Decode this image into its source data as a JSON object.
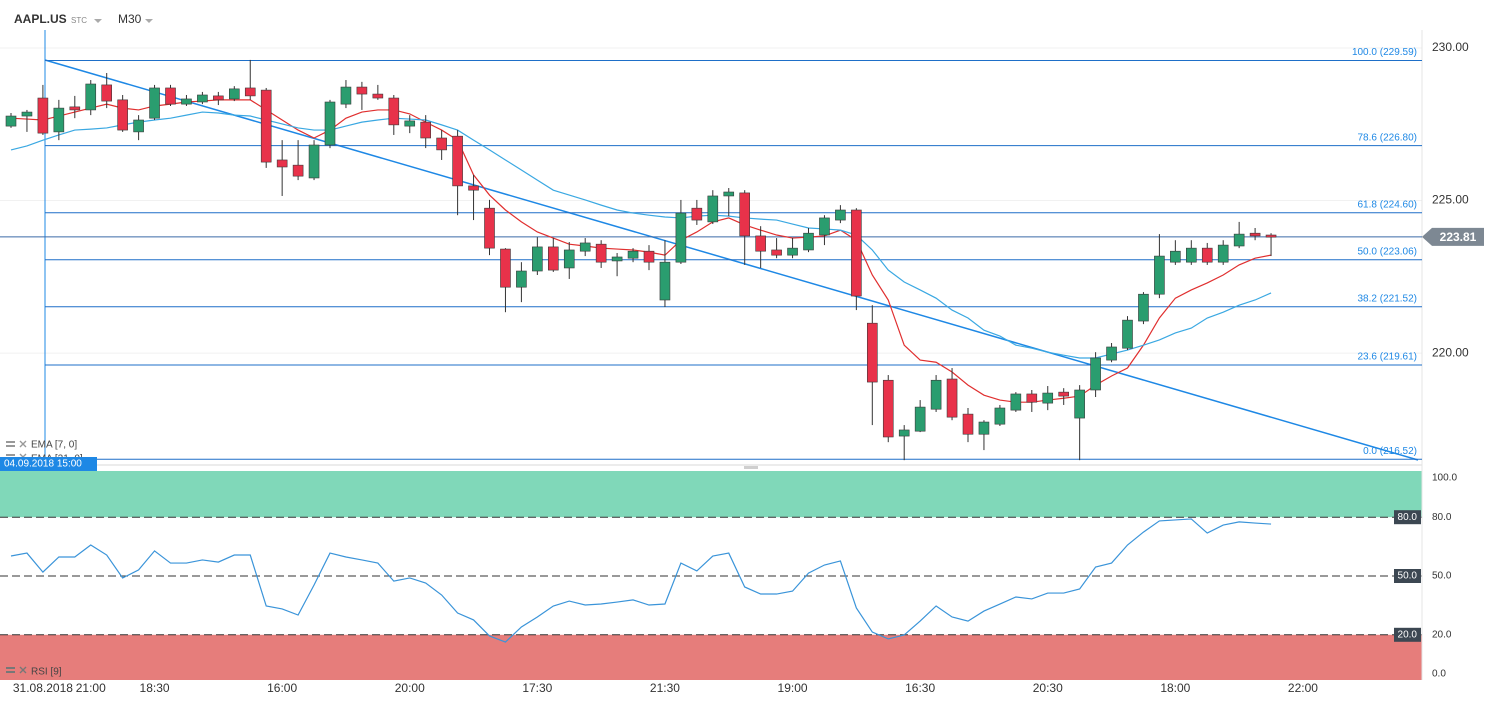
{
  "header": {
    "symbol": "AAPL.US",
    "exchange": "STC",
    "interval": "M30"
  },
  "chart_data": [
    {
      "type": "candlestick",
      "crosshair_label": "04.09.2018 15:00",
      "categories": [
        null,
        null,
        "31.08.2018",
        null,
        null,
        "21:00",
        null,
        null,
        null,
        "18:30",
        null,
        null,
        null,
        null,
        null,
        null,
        null,
        "16:00",
        null,
        null,
        null,
        null,
        null,
        null,
        null,
        "20:00",
        null,
        null,
        null,
        null,
        null,
        null,
        null,
        "17:30",
        null,
        null,
        null,
        null,
        null,
        null,
        null,
        "21:30",
        null,
        null,
        null,
        null,
        null,
        null,
        null,
        "19:00",
        null,
        null,
        null,
        null,
        null,
        null,
        null,
        "16:30",
        null,
        null,
        null,
        null,
        null,
        null,
        null,
        "20:30",
        null,
        null,
        null,
        null,
        null,
        null,
        null,
        "18:00",
        null,
        null,
        null,
        null,
        null,
        null,
        null,
        "22:00"
      ],
      "open": [
        227.44,
        227.77,
        228.36,
        227.25,
        228.07,
        227.97,
        228.79,
        228.3,
        227.25,
        227.7,
        228.69,
        228.16,
        228.23,
        228.43,
        228.33,
        228.69,
        228.62,
        226.33,
        226.16,
        225.74,
        226.82,
        228.16,
        228.72,
        228.49,
        228.36,
        227.44,
        227.57,
        227.05,
        227.11,
        225.48,
        224.75,
        223.41,
        222.16,
        222.69,
        223.48,
        222.79,
        223.34,
        223.57,
        223.02,
        223.11,
        223.34,
        221.74,
        222.98,
        224.75,
        224.3,
        225.15,
        225.25,
        223.84,
        223.38,
        223.21,
        223.38,
        223.87,
        224.36,
        224.69,
        220.98,
        219.11,
        217.28,
        217.44,
        218.16,
        219.15,
        218.0,
        217.34,
        217.67,
        218.13,
        218.66,
        218.36,
        218.72,
        217.87,
        218.79,
        219.77,
        220.16,
        221.05,
        221.93,
        222.98,
        222.98,
        223.44,
        222.98,
        223.51,
        223.93,
        223.87,
        null,
        null
      ],
      "high": [
        227.87,
        227.97,
        228.79,
        228.3,
        228.43,
        228.95,
        229.18,
        228.46,
        227.8,
        228.79,
        228.79,
        228.46,
        228.56,
        228.56,
        228.75,
        229.61,
        228.69,
        226.98,
        226.98,
        226.98,
        228.3,
        228.95,
        228.89,
        228.79,
        228.46,
        227.8,
        227.8,
        227.31,
        227.31,
        225.84,
        225.02,
        223.44,
        222.98,
        223.8,
        223.77,
        223.64,
        223.77,
        223.7,
        223.28,
        223.44,
        223.54,
        223.7,
        225.02,
        225.02,
        225.34,
        225.41,
        225.34,
        224.16,
        223.77,
        223.77,
        224.1,
        224.52,
        224.85,
        224.75,
        221.57,
        219.28,
        217.64,
        218.46,
        219.28,
        219.51,
        218.2,
        217.8,
        218.3,
        218.72,
        218.79,
        218.92,
        218.85,
        218.95,
        220.03,
        220.33,
        221.21,
        222.0,
        223.9,
        223.7,
        223.7,
        223.61,
        223.7,
        224.3,
        224.1,
        223.93,
        null,
        null
      ],
      "low": [
        227.38,
        227.25,
        227.15,
        226.98,
        227.7,
        227.8,
        228.03,
        227.25,
        226.98,
        227.64,
        228.1,
        228.1,
        228.16,
        228.13,
        228.26,
        228.3,
        226.07,
        225.15,
        225.67,
        225.67,
        226.72,
        228.03,
        227.97,
        228.3,
        227.15,
        227.21,
        226.72,
        226.33,
        224.52,
        224.36,
        223.21,
        221.34,
        221.67,
        222.56,
        222.66,
        222.43,
        223.18,
        222.79,
        222.52,
        222.98,
        222.72,
        221.51,
        222.92,
        224.2,
        224.23,
        224.49,
        222.89,
        222.79,
        223.11,
        223.11,
        223.31,
        223.54,
        224.26,
        221.41,
        217.64,
        217.08,
        216.49,
        217.41,
        218.07,
        217.8,
        217.08,
        216.82,
        217.61,
        218.07,
        218.07,
        218.13,
        218.3,
        216.49,
        218.56,
        219.7,
        220.1,
        220.95,
        221.8,
        222.89,
        222.89,
        222.89,
        222.89,
        223.44,
        223.7,
        223.18,
        null,
        null
      ],
      "close": [
        227.77,
        227.9,
        227.21,
        228.03,
        227.97,
        228.82,
        228.26,
        227.31,
        227.64,
        228.69,
        228.16,
        228.33,
        228.46,
        228.3,
        228.66,
        228.43,
        226.26,
        226.1,
        225.8,
        226.82,
        228.23,
        228.72,
        228.49,
        228.36,
        227.48,
        227.61,
        227.05,
        226.66,
        225.48,
        225.34,
        223.44,
        222.16,
        222.69,
        223.48,
        222.72,
        223.38,
        223.61,
        222.98,
        223.15,
        223.34,
        222.98,
        222.98,
        224.59,
        224.36,
        225.15,
        225.28,
        223.84,
        223.34,
        223.21,
        223.44,
        223.93,
        224.43,
        224.69,
        221.87,
        219.05,
        217.25,
        217.48,
        218.23,
        219.11,
        217.9,
        217.34,
        217.74,
        218.2,
        218.66,
        218.39,
        218.69,
        218.59,
        218.79,
        219.84,
        220.2,
        221.08,
        221.93,
        223.18,
        223.34,
        223.44,
        222.98,
        223.54,
        223.9,
        223.84,
        223.8,
        null,
        null
      ],
      "up_color": "#2a9d6f",
      "down_color": "#e8324a",
      "series": [
        {
          "name": "EMA [7, 0]",
          "color": "#e02f2f",
          "values": [
            227.7,
            227.67,
            227.64,
            227.77,
            227.9,
            228.03,
            228.16,
            228.03,
            227.97,
            228.1,
            228.16,
            228.23,
            228.26,
            228.3,
            228.3,
            228.3,
            227.97,
            227.64,
            227.31,
            227.05,
            227.31,
            227.7,
            227.9,
            227.97,
            227.97,
            227.84,
            227.57,
            227.31,
            226.98,
            225.84,
            225.18,
            224.69,
            224.3,
            223.97,
            223.77,
            223.57,
            223.51,
            223.44,
            223.41,
            223.38,
            223.31,
            223.21,
            223.7,
            223.97,
            224.3,
            224.43,
            224.2,
            224.03,
            223.87,
            223.77,
            223.8,
            223.84,
            224.03,
            223.7,
            222.56,
            221.74,
            220.26,
            219.77,
            219.7,
            219.38,
            218.95,
            218.62,
            218.46,
            218.39,
            218.39,
            218.46,
            218.52,
            218.59,
            218.95,
            219.25,
            219.51,
            220.26,
            221.15,
            221.8,
            222.07,
            222.3,
            222.56,
            222.89,
            223.11,
            223.21,
            null,
            null
          ]
        },
        {
          "name": "EMA [21, 0]",
          "color": "#3aa8e2",
          "values": [
            226.66,
            226.79,
            226.98,
            227.15,
            227.31,
            227.34,
            227.38,
            227.48,
            227.57,
            227.64,
            227.7,
            227.8,
            227.9,
            227.87,
            227.8,
            227.77,
            227.64,
            227.51,
            227.38,
            227.31,
            227.31,
            227.44,
            227.57,
            227.64,
            227.7,
            227.67,
            227.64,
            227.48,
            227.31,
            226.98,
            226.66,
            226.33,
            226.0,
            225.67,
            225.34,
            225.18,
            225.02,
            224.85,
            224.69,
            224.59,
            224.52,
            224.46,
            224.43,
            224.49,
            224.52,
            224.49,
            224.43,
            224.39,
            224.36,
            224.23,
            224.1,
            224.07,
            224.03,
            223.87,
            223.38,
            222.72,
            222.33,
            222.07,
            221.8,
            221.41,
            221.15,
            220.75,
            220.56,
            220.26,
            220.16,
            220.03,
            219.93,
            219.84,
            219.84,
            219.97,
            220.1,
            220.26,
            220.43,
            220.66,
            220.82,
            221.15,
            221.34,
            221.57,
            221.74,
            221.97,
            null,
            null
          ]
        }
      ],
      "fib_levels": [
        {
          "label": "100.0 (229.59)",
          "value": 229.59
        },
        {
          "label": "78.6 (226.80)",
          "value": 226.8
        },
        {
          "label": "61.8 (224.60)",
          "value": 224.6
        },
        {
          "label": "50.0 (223.06)",
          "value": 223.06
        },
        {
          "label": "38.2 (221.52)",
          "value": 221.52
        },
        {
          "label": "23.6 (219.61)",
          "value": 219.61
        },
        {
          "label": "0.0 (216.52)",
          "value": 216.52
        }
      ],
      "fib_color": "#1e6fc8",
      "last_price": 223.81,
      "ylim": [
        216.43,
        230.59
      ],
      "yticks": [
        {
          "value": 230,
          "label": "230.00"
        },
        {
          "value": 225,
          "label": "225.00"
        },
        {
          "value": 220,
          "label": "220.00"
        }
      ],
      "grid": true
    },
    {
      "type": "line",
      "series": [
        {
          "name": "RSI [9]",
          "color": "#3a94d9",
          "values": [
            60.2,
            61.7,
            52.0,
            59.7,
            59.7,
            65.8,
            60.7,
            49.0,
            53.1,
            62.8,
            56.6,
            56.6,
            58.2,
            57.1,
            60.7,
            60.7,
            34.7,
            33.2,
            30.1,
            45.4,
            61.7,
            59.7,
            58.2,
            56.6,
            47.4,
            49.0,
            46.4,
            40.3,
            31.1,
            27.6,
            19.4,
            16.3,
            24.0,
            29.1,
            34.7,
            37.2,
            35.2,
            35.7,
            36.7,
            37.8,
            35.2,
            35.7,
            56.6,
            52.6,
            60.2,
            61.7,
            44.4,
            40.8,
            40.8,
            42.3,
            51.5,
            55.6,
            57.7,
            33.7,
            21.4,
            17.9,
            19.9,
            27.0,
            34.7,
            29.1,
            27.0,
            32.1,
            35.7,
            39.3,
            38.3,
            41.3,
            41.3,
            43.4,
            54.6,
            56.6,
            65.8,
            72.4,
            78.1,
            78.6,
            79.1,
            71.9,
            76.0,
            77.6,
            77.0,
            76.5,
            null,
            null
          ]
        }
      ],
      "levels": [
        {
          "value": 80,
          "label": "80.0",
          "zone": "above",
          "zone_color": "#80d8b9"
        },
        {
          "value": 50,
          "label": "50.0"
        },
        {
          "value": 20,
          "label": "20.0",
          "zone": "below",
          "zone_color": "#e67d7b"
        }
      ],
      "ylim": [
        -3.06,
        104.08
      ],
      "yticks": [
        {
          "value": 100,
          "label": "100.0"
        },
        {
          "value": 80,
          "label": "80.0"
        },
        {
          "value": 50,
          "label": "50.0"
        },
        {
          "value": 20,
          "label": "20.0"
        },
        {
          "value": 0,
          "label": "0.0"
        }
      ]
    }
  ]
}
